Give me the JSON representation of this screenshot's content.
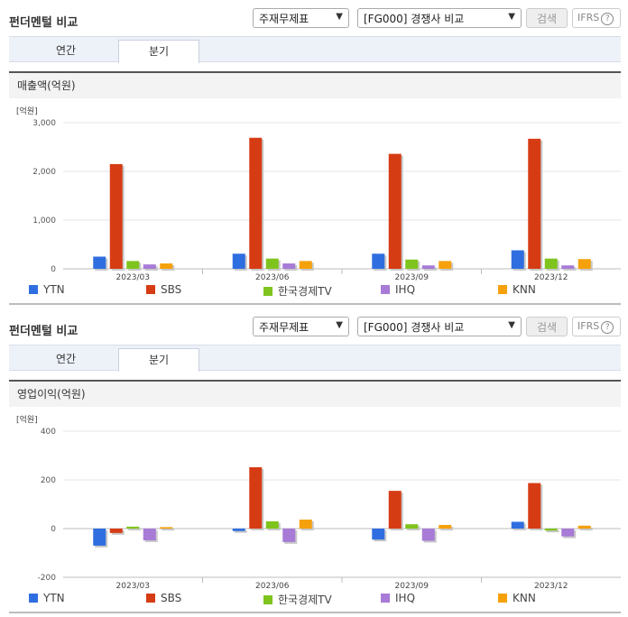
{
  "panels": [
    {
      "title": "펀더멘털 비교",
      "select1": "주재무제표",
      "select2": "[FG000] 경쟁사 비교",
      "search_btn": "검색",
      "ifrs": "IFRS",
      "tabs": [
        "연간",
        "분기"
      ],
      "subtitle": "매출액(억원)"
    },
    {
      "title": "펀더멘털 비교",
      "select1": "주재무제표",
      "select2": "[FG000] 경쟁사 비교",
      "search_btn": "검색",
      "ifrs": "IFRS",
      "tabs": [
        "연간",
        "분기"
      ],
      "subtitle": "영업이익(억원)"
    }
  ],
  "legend": [
    "YTN",
    "SBS",
    "한국경제TV",
    "IHQ",
    "KNN"
  ],
  "colors": {
    "YTN": "#2f6ee0",
    "SBS": "#d63c14",
    "한국경제TV": "#7fc41e",
    "IHQ": "#a77bd6",
    "KNN": "#f5a10c"
  },
  "chart_data": [
    {
      "type": "bar",
      "unit_label": "[억원]",
      "categories": [
        "2023/03",
        "2023/06",
        "2023/09",
        "2023/12"
      ],
      "ylim": [
        0,
        3000
      ],
      "yticks": [
        "3,000",
        "2,000",
        "1,000",
        "0"
      ],
      "ytick_values": [
        3000,
        2000,
        1000,
        0
      ],
      "series": [
        {
          "name": "YTN",
          "values": [
            250,
            310,
            310,
            380
          ]
        },
        {
          "name": "SBS",
          "values": [
            2150,
            2690,
            2360,
            2670
          ]
        },
        {
          "name": "한국경제TV",
          "values": [
            160,
            210,
            190,
            210
          ]
        },
        {
          "name": "IHQ",
          "values": [
            90,
            110,
            70,
            70
          ]
        },
        {
          "name": "KNN",
          "values": [
            110,
            160,
            160,
            200
          ]
        }
      ]
    },
    {
      "type": "bar",
      "unit_label": "[억원]",
      "categories": [
        "2023/03",
        "2023/06",
        "2023/09",
        "2023/12"
      ],
      "ylim": [
        -200,
        400
      ],
      "yticks": [
        "400",
        "200",
        "0",
        "-200"
      ],
      "ytick_values": [
        400,
        200,
        0,
        -200
      ],
      "series": [
        {
          "name": "YTN",
          "values": [
            -70,
            -10,
            -45,
            28
          ]
        },
        {
          "name": "SBS",
          "values": [
            -18,
            252,
            155,
            187
          ]
        },
        {
          "name": "한국경제TV",
          "values": [
            8,
            30,
            18,
            -8
          ]
        },
        {
          "name": "IHQ",
          "values": [
            -48,
            -55,
            -50,
            -32
          ]
        },
        {
          "name": "KNN",
          "values": [
            6,
            37,
            15,
            12
          ]
        }
      ]
    }
  ]
}
